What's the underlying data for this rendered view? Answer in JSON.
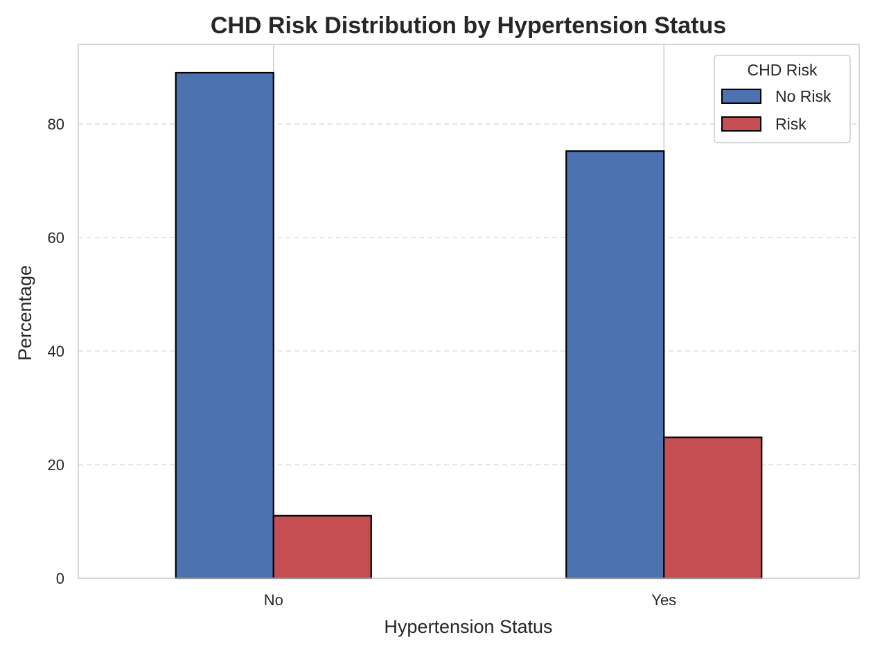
{
  "chart_data": {
    "type": "bar",
    "title": "CHD Risk Distribution by Hypertension Status",
    "xlabel": "Hypertension Status",
    "ylabel": "Percentage",
    "categories": [
      "No",
      "Yes"
    ],
    "series": [
      {
        "name": "No Risk",
        "values": [
          89.0,
          75.2
        ],
        "color": "#4c72b0"
      },
      {
        "name": "Risk",
        "values": [
          11.0,
          24.8
        ],
        "color": "#c44e52"
      }
    ],
    "ylim": [
      0,
      94
    ],
    "yticks": [
      0,
      20,
      40,
      60,
      80
    ],
    "ytick_labels": [
      "0",
      "20",
      "40",
      "60",
      "80"
    ],
    "grid": {
      "y": true,
      "y_style": "dashed",
      "x": true
    },
    "legend": {
      "title": "CHD Risk",
      "placement": "top-right"
    },
    "bar_edge_color": "#000000"
  }
}
